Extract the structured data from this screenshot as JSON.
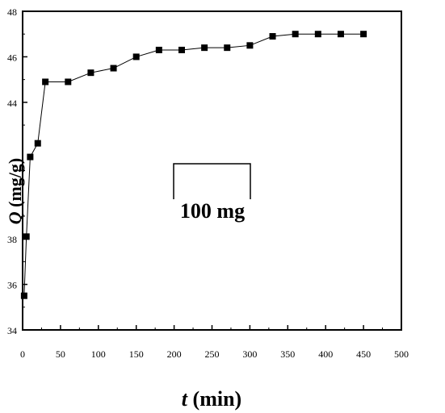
{
  "chart_data": {
    "type": "line",
    "title": "",
    "xlabel_var": "t",
    "xlabel_unit": " (min)",
    "ylabel_var": "Q",
    "ylabel_unit": " (mg/g)",
    "xlim": [
      0,
      500
    ],
    "ylim": [
      34,
      48
    ],
    "xticks": [
      0,
      50,
      100,
      150,
      200,
      250,
      300,
      350,
      400,
      450,
      500
    ],
    "yticks": [
      34,
      36,
      38,
      44,
      46,
      48
    ],
    "grid": false,
    "legend_placement": "center",
    "series": [
      {
        "name": "100 mg",
        "marker": "square",
        "color": "#000000",
        "x": [
          2,
          5,
          10,
          20,
          30,
          60,
          90,
          120,
          150,
          180,
          210,
          240,
          270,
          300,
          330,
          360,
          390,
          420,
          450
        ],
        "y": [
          35.5,
          38.1,
          41.6,
          42.2,
          44.9,
          44.9,
          45.3,
          45.5,
          46.0,
          46.3,
          46.3,
          46.4,
          46.4,
          46.5,
          46.9,
          47.0,
          47.0,
          47.0,
          47.0
        ]
      }
    ]
  }
}
